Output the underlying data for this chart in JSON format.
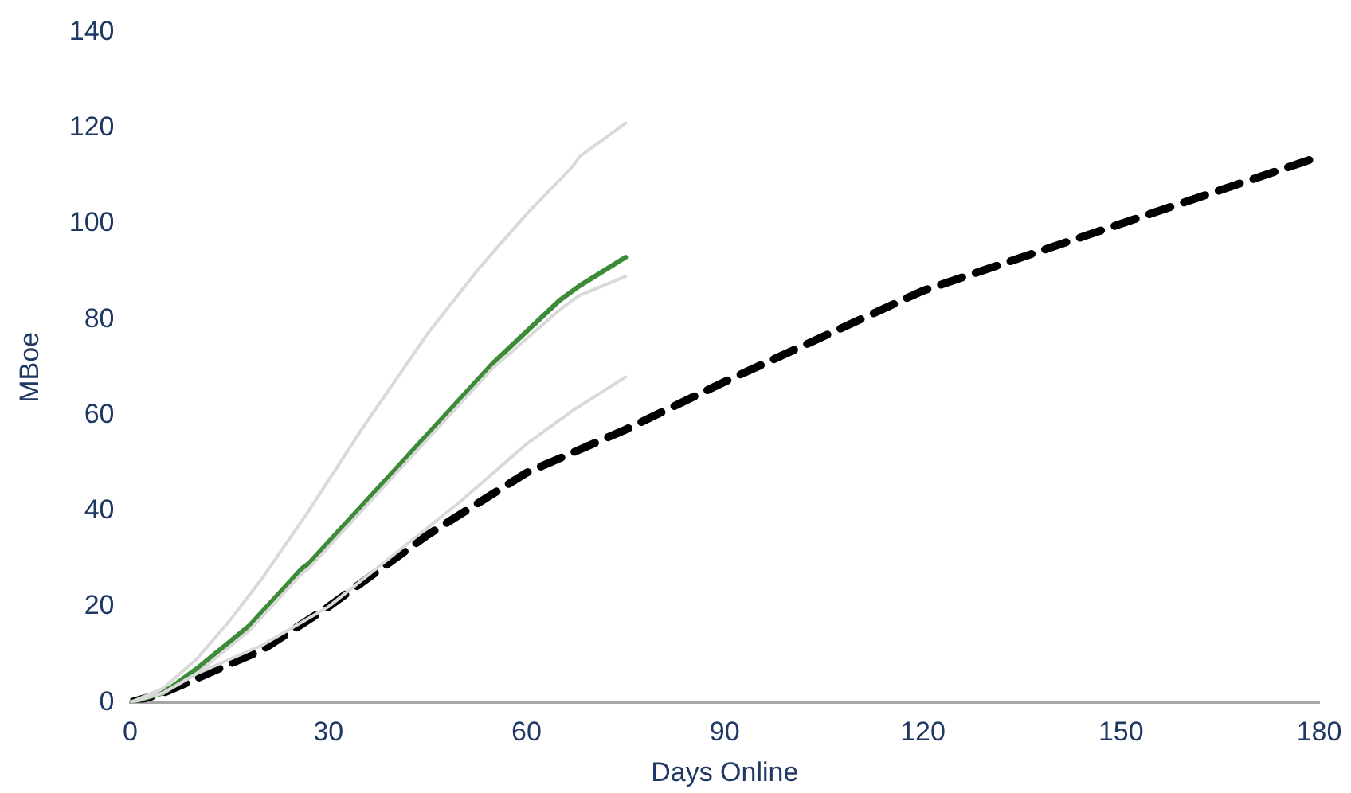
{
  "chart_data": {
    "type": "line",
    "xlabel": "Days Online",
    "ylabel": "MBoe",
    "xlim": [
      0,
      180
    ],
    "xticks": [
      0,
      30,
      60,
      90,
      120,
      150,
      180
    ],
    "ylim": [
      0,
      140
    ],
    "yticks": [
      0,
      20,
      40,
      60,
      80,
      100,
      120,
      140
    ],
    "grid": false,
    "legend": false,
    "marker": "none",
    "series": [
      {
        "color": "#d9d9d9",
        "x": [
          0,
          5,
          10,
          15,
          20,
          26,
          27,
          35,
          45,
          53,
          60,
          67,
          68,
          75
        ],
        "values": [
          0,
          3,
          9,
          17,
          26,
          38,
          40,
          57,
          77,
          91,
          102,
          112,
          114,
          121
        ]
      },
      {
        "color": "#d9d9d9",
        "x": [
          0,
          5,
          10,
          18,
          22,
          26,
          27,
          35,
          45,
          55,
          65,
          68,
          75
        ],
        "values": [
          0,
          2,
          6,
          15,
          21,
          27,
          28,
          40,
          55,
          70,
          82,
          85,
          89
        ]
      },
      {
        "color": "#d9d9d9",
        "x": [
          0,
          5,
          10,
          20,
          30,
          40,
          50,
          60,
          67,
          75
        ],
        "values": [
          0,
          2,
          6,
          12,
          20,
          31,
          42,
          54,
          61,
          68
        ]
      },
      {
        "color": "#3d8b37",
        "x": [
          0,
          5,
          10,
          18,
          22,
          26,
          27,
          35,
          45,
          55,
          65,
          68,
          75
        ],
        "values": [
          0,
          2,
          7,
          16,
          22,
          28,
          29,
          41,
          56,
          71,
          84,
          87,
          93
        ]
      },
      {
        "color": "#000000",
        "line_style": "dashed",
        "x": [
          0,
          5,
          10,
          20,
          30,
          45,
          60,
          75,
          90,
          120,
          150,
          180
        ],
        "values": [
          0,
          2,
          5,
          11,
          20,
          35,
          48,
          57,
          67,
          86,
          100,
          114
        ]
      }
    ]
  }
}
